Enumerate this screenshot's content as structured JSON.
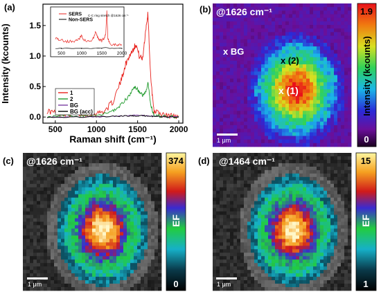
{
  "panels": {
    "a": {
      "letter": "(a)",
      "chart_data": {
        "type": "line",
        "xlabel": "Raman shift (cm⁻¹)",
        "ylabel": "Intensity (kcounts)",
        "xlim": [
          350,
          2050
        ],
        "ylim": [
          -0.1,
          1.85
        ],
        "x_ticks": [
          500,
          1000,
          1500,
          2000
        ],
        "y_ticks": [
          0.0,
          0.5,
          1.0,
          1.5
        ],
        "y_tick_labels": [
          "0.0",
          "0.5",
          "1.0",
          "1.5"
        ],
        "legend_position": "lower-left",
        "series": [
          {
            "name": "1",
            "color": "#e8211c",
            "x": [
              400,
              500,
              600,
              700,
              800,
              900,
              1000,
              1100,
              1200,
              1300,
              1350,
              1400,
              1440,
              1480,
              1520,
              1560,
              1600,
              1626,
              1660,
              1700,
              1800,
              1900,
              2000
            ],
            "y": [
              0.1,
              0.07,
              0.06,
              0.05,
              0.05,
              0.05,
              0.06,
              0.1,
              0.25,
              0.6,
              0.85,
              1.0,
              1.1,
              1.2,
              1.0,
              0.95,
              1.45,
              1.7,
              0.6,
              0.1,
              0.03,
              0.02,
              0.02
            ]
          },
          {
            "name": "2",
            "color": "#1f9a2c",
            "x": [
              400,
              600,
              800,
              1000,
              1200,
              1300,
              1400,
              1460,
              1500,
              1560,
              1600,
              1626,
              1660,
              1700,
              1800,
              2000
            ],
            "y": [
              0.02,
              0.02,
              0.02,
              0.02,
              0.1,
              0.2,
              0.35,
              0.5,
              0.45,
              0.35,
              0.4,
              0.55,
              0.2,
              0.03,
              0.01,
              0.01
            ]
          },
          {
            "name": "BG",
            "color": "#7a3da3",
            "x": [
              400,
              800,
              1200,
              1400,
              1500,
              1600,
              1700,
              2000
            ],
            "y": [
              0.0,
              0.0,
              0.01,
              0.02,
              0.03,
              0.02,
              0.01,
              0.0
            ]
          },
          {
            "name": "BG (acc)",
            "color": "#000000",
            "x": [
              400,
              800,
              1200,
              1400,
              1500,
              1600,
              1700,
              2000
            ],
            "y": [
              0.0,
              0.0,
              0.01,
              0.02,
              0.02,
              0.02,
              0.01,
              0.0
            ]
          }
        ],
        "inset": {
          "xlim": [
            350,
            2000
          ],
          "x_ticks": [
            500,
            1000,
            1500,
            2000
          ],
          "legend": [
            "SERS",
            "Non-SERS"
          ],
          "legend_colors": [
            "#e8211c",
            "#000000"
          ],
          "annotation": "C-C ring stretch @1626 cm⁻¹",
          "sers_x": [
            350,
            450,
            550,
            650,
            750,
            850,
            950,
            1000,
            1050,
            1150,
            1250,
            1300,
            1350,
            1400,
            1450,
            1500,
            1550,
            1600,
            1626,
            1650,
            1700,
            1800,
            1900,
            2000
          ],
          "sers_y": [
            0.3,
            0.25,
            0.22,
            0.2,
            0.2,
            0.22,
            0.28,
            0.35,
            0.25,
            0.2,
            0.22,
            0.3,
            0.45,
            0.3,
            0.25,
            0.22,
            0.28,
            0.4,
            1.0,
            0.3,
            0.15,
            0.12,
            0.1,
            0.1
          ],
          "nonsers_x": [
            350,
            700,
            1000,
            1300,
            1600,
            1700,
            2000
          ],
          "nonsers_y": [
            0.02,
            0.02,
            0.02,
            0.02,
            0.04,
            0.02,
            0.02
          ]
        }
      }
    },
    "b": {
      "letter": "(b)",
      "title": "@1626 cm⁻¹",
      "markers": [
        "x BG",
        "x (2)",
        "x (1)"
      ],
      "scale_label": "1 μm",
      "colorbar_max": "1.9",
      "colorbar_min": "0",
      "colorbar_label": "Intensity (kcounts)",
      "colormap": "rainbow"
    },
    "c": {
      "letter": "(c)",
      "title": "@1626 cm⁻¹",
      "scale_label": "1 μm",
      "colorbar_max": "374",
      "colorbar_min": "0",
      "colorbar_label": "EF",
      "colormap": "hot-spectral"
    },
    "d": {
      "letter": "(d)",
      "title": "@1464 cm⁻¹",
      "scale_label": "1 μm",
      "colorbar_max": "15",
      "colorbar_min": "1",
      "colorbar_label": "EF",
      "colormap": "hot-spectral"
    }
  }
}
